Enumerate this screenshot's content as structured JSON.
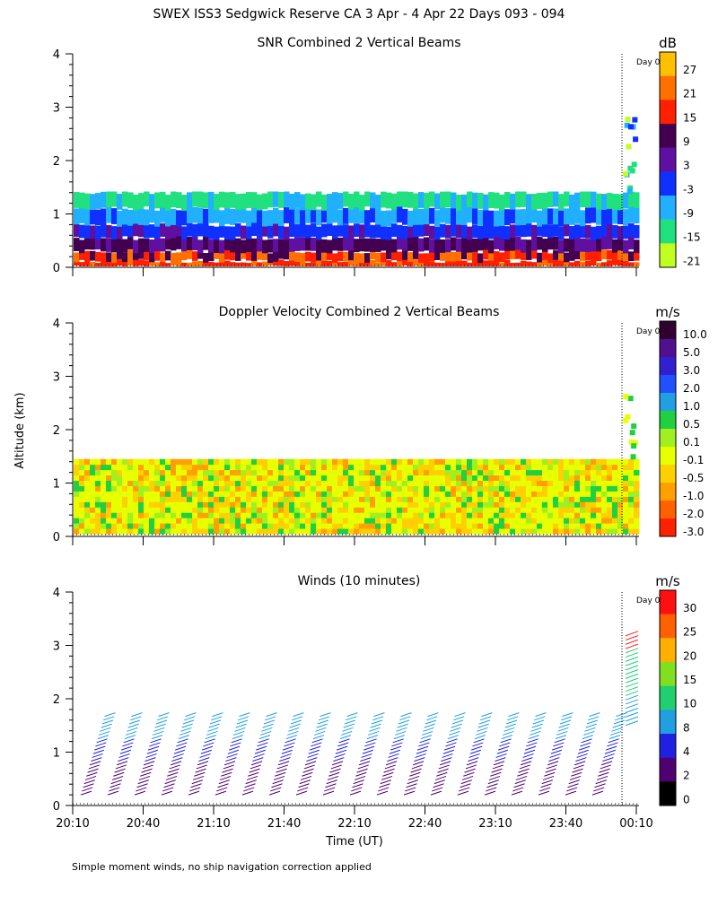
{
  "page": {
    "title": "SWEX ISS3 Sedgwick Reserve CA   3 Apr -  4 Apr 22 Days 093 - 094",
    "ylabel": "Altitude (km)",
    "xlabel": "Time (UT)",
    "footnote": "Simple moment winds, no ship navigation correction applied",
    "day_marker": "Day 0"
  },
  "chart_data": [
    {
      "type": "heatmap",
      "title": "SNR Combined 2 Vertical Beams",
      "ylim": [
        0,
        4
      ],
      "yticks": [
        "0",
        "1",
        "2",
        "3",
        "4"
      ],
      "x_tick_labels": [],
      "colorbar": {
        "unit": "dB",
        "labels": [
          "27",
          "21",
          "15",
          "9",
          "3",
          "-3",
          "-9",
          "-15",
          "-21"
        ],
        "colors": [
          "#ffc000",
          "#ff7000",
          "#ff2000",
          "#440050",
          "#6010a0",
          "#1030ff",
          "#20b0ff",
          "#20e080",
          "#c0ff20"
        ]
      }
    },
    {
      "type": "heatmap",
      "title": "Doppler Velocity Combined 2 Vertical Beams",
      "ylim": [
        0,
        4
      ],
      "yticks": [
        "0",
        "1",
        "2",
        "3",
        "4"
      ],
      "x_tick_labels": [],
      "colorbar": {
        "unit": "m/s",
        "labels": [
          "10.0",
          "5.0",
          "3.0",
          "2.0",
          "1.0",
          "0.5",
          "0.1",
          "-0.1",
          "-0.5",
          "-1.0",
          "-2.0",
          "-3.0"
        ],
        "colors": [
          "#300030",
          "#501090",
          "#3020d0",
          "#2050ff",
          "#20a0e0",
          "#20d040",
          "#a0f020",
          "#e8ff00",
          "#ffd000",
          "#ffa000",
          "#ff6000",
          "#ff2000"
        ]
      }
    },
    {
      "type": "scatter",
      "title": "Winds (10 minutes)",
      "ylim": [
        0,
        4
      ],
      "yticks": [
        "0",
        "1",
        "2",
        "3",
        "4"
      ],
      "x_tick_labels": [
        "20:10",
        "20:40",
        "21:10",
        "21:40",
        "22:10",
        "22:40",
        "23:10",
        "23:40",
        "00:10"
      ],
      "colorbar": {
        "unit": "m/s",
        "labels": [
          "30",
          "25",
          "20",
          "15",
          "10",
          "8",
          "4",
          "2",
          "0"
        ],
        "colors": [
          "#ff1010",
          "#ff6000",
          "#ffb000",
          "#80e020",
          "#20d070",
          "#20a0e0",
          "#2020e0",
          "#500070",
          "#000000"
        ]
      }
    }
  ]
}
